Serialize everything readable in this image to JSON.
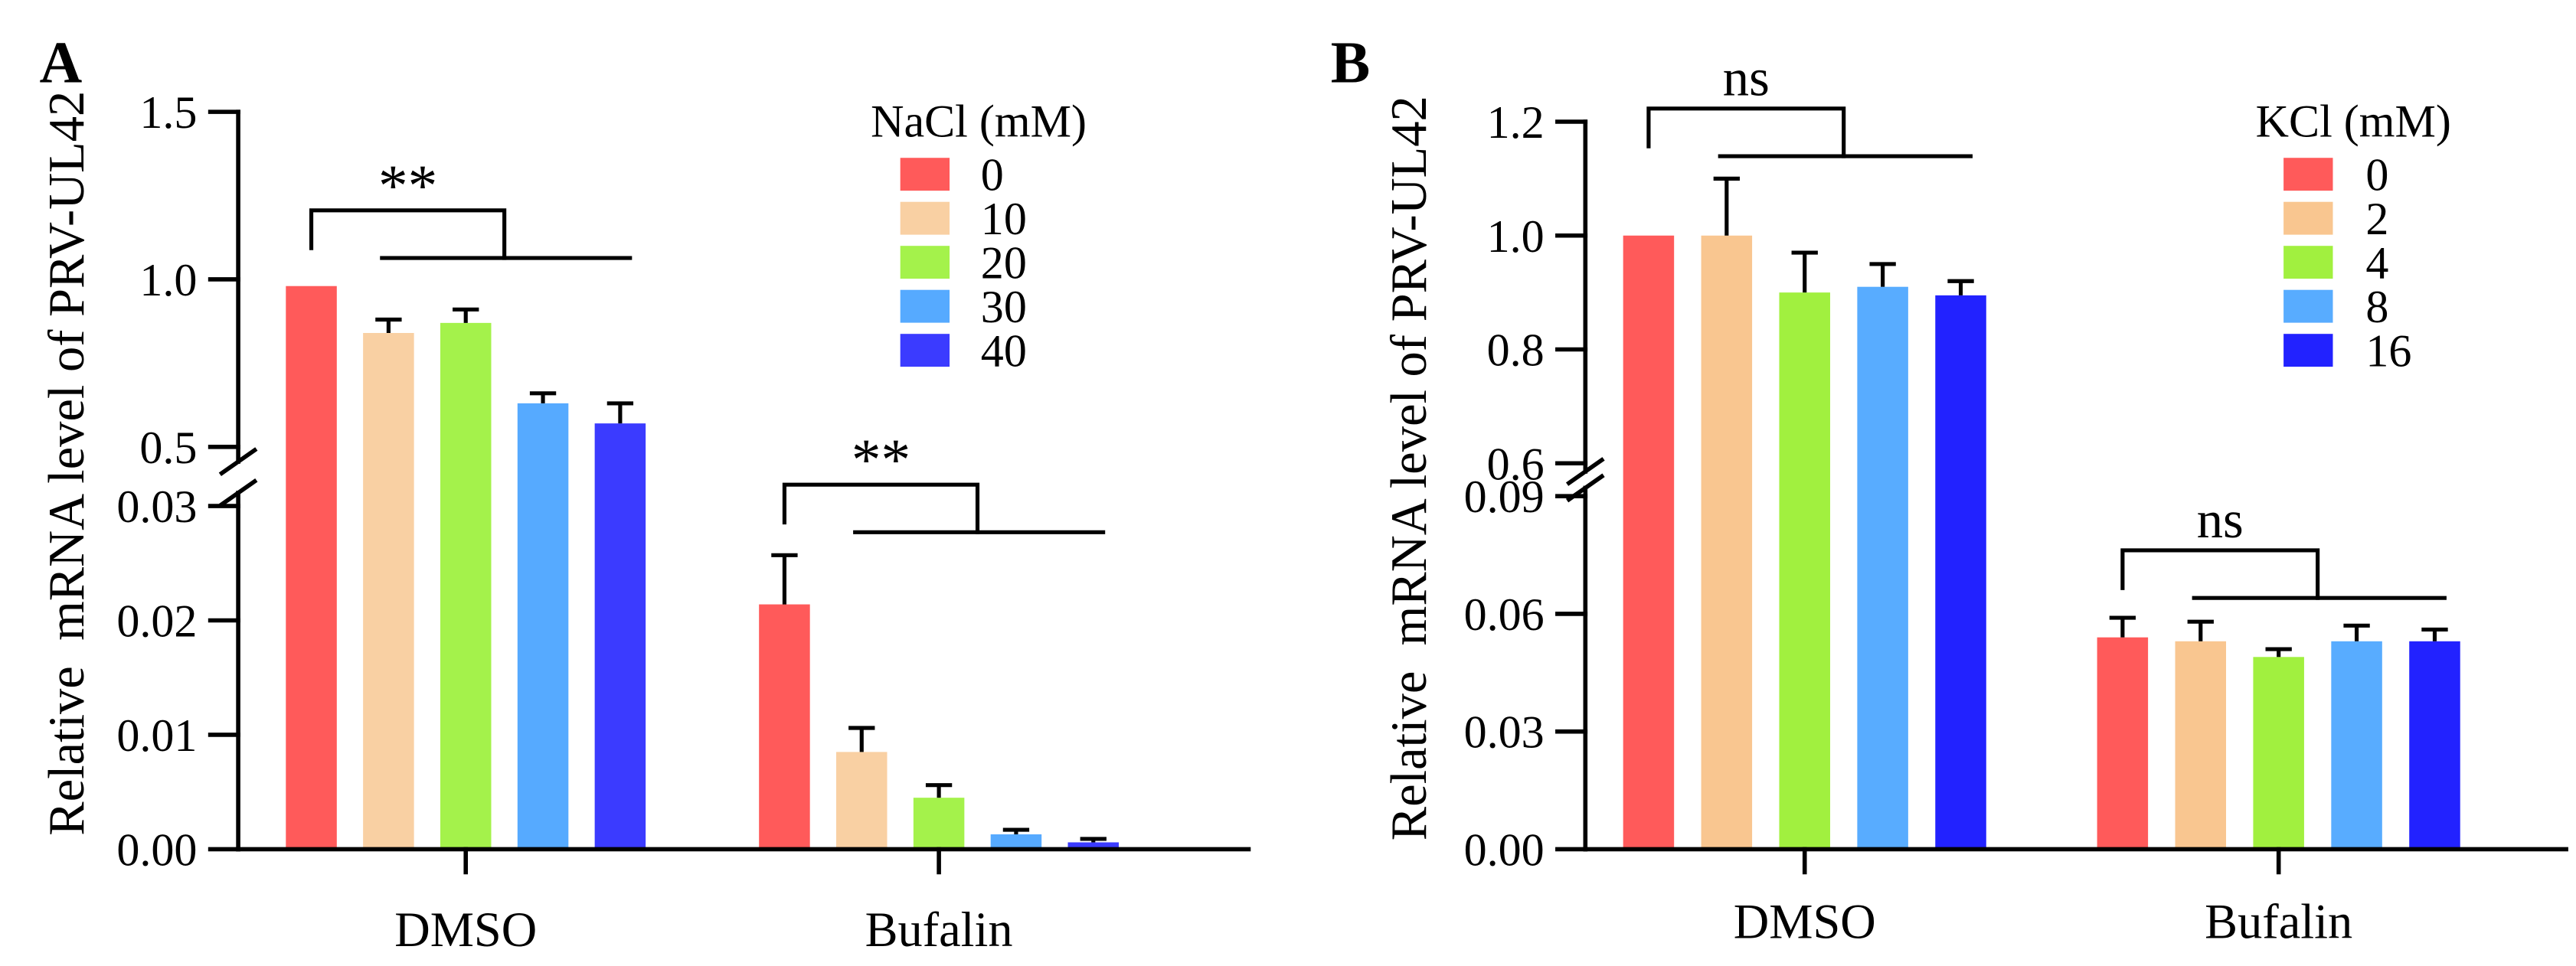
{
  "chart_data": [
    {
      "type": "bar",
      "panel_label": "A",
      "ylabel": "Relative  mRNA level of PRV-UL42",
      "categories": [
        "DMSO",
        "Bufalin"
      ],
      "legend": {
        "title": "NaCl (mM)",
        "position": "top-right"
      },
      "grid": false,
      "y_axis": {
        "broken": true,
        "upper_segment": {
          "range": [
            0.5,
            1.5
          ],
          "ticks": [
            0.5,
            1.0,
            1.5
          ],
          "tick_labels": [
            "0.5",
            "1.0",
            "1.5"
          ]
        },
        "lower_segment": {
          "range": [
            0,
            0.03
          ],
          "ticks": [
            0,
            0.01,
            0.02,
            0.03
          ],
          "tick_labels": [
            "0.00",
            "0.01",
            "0.02",
            "0.03"
          ]
        }
      },
      "series": [
        {
          "name": "0",
          "color": "#FF5A5A",
          "values": [
            0.98,
            0.0214
          ],
          "errors": [
            0,
            0.0043
          ]
        },
        {
          "name": "10",
          "color": "#F9D0A3",
          "values": [
            0.84,
            0.0085
          ],
          "errors": [
            0.04,
            0.0021
          ]
        },
        {
          "name": "20",
          "color": "#A4F24B",
          "values": [
            0.87,
            0.0045
          ],
          "errors": [
            0.04,
            0.0011
          ]
        },
        {
          "name": "30",
          "color": "#56AAFF",
          "values": [
            0.63,
            0.0013
          ],
          "errors": [
            0.03,
            0.0004
          ]
        },
        {
          "name": "40",
          "color": "#3B3BFF",
          "values": [
            0.57,
            0.0006
          ],
          "errors": [
            0.06,
            0.0003
          ]
        }
      ],
      "significance": [
        {
          "category_index": 0,
          "text": "**"
        },
        {
          "category_index": 1,
          "text": "**"
        }
      ]
    },
    {
      "type": "bar",
      "panel_label": "B",
      "ylabel": "Relative  mRNA level of PRV-UL42",
      "categories": [
        "DMSO",
        "Bufalin"
      ],
      "legend": {
        "title": "KCl (mM)",
        "position": "top-right"
      },
      "grid": false,
      "y_axis": {
        "broken": true,
        "upper_segment": {
          "range": [
            0.6,
            1.2
          ],
          "ticks": [
            0.6,
            0.8,
            1.0,
            1.2
          ],
          "tick_labels": [
            "0.6",
            "0.8",
            "1.0",
            "1.2"
          ]
        },
        "lower_segment": {
          "range": [
            0,
            0.09
          ],
          "ticks": [
            0,
            0.03,
            0.06,
            0.09
          ],
          "tick_labels": [
            "0.00",
            "0.03",
            "0.06",
            "0.09"
          ]
        }
      },
      "series": [
        {
          "name": "0",
          "color": "#FF5A5A",
          "values": [
            1.0,
            0.054
          ],
          "errors": [
            0,
            0.005
          ]
        },
        {
          "name": "2",
          "color": "#F9C690",
          "values": [
            1.0,
            0.053
          ],
          "errors": [
            0.1,
            0.005
          ]
        },
        {
          "name": "4",
          "color": "#A1F03F",
          "values": [
            0.9,
            0.049
          ],
          "errors": [
            0.07,
            0.002
          ]
        },
        {
          "name": "8",
          "color": "#58ACFF",
          "values": [
            0.91,
            0.053
          ],
          "errors": [
            0.04,
            0.004
          ]
        },
        {
          "name": "16",
          "color": "#2222FF",
          "values": [
            0.895,
            0.053
          ],
          "errors": [
            0.025,
            0.003
          ]
        }
      ],
      "significance": [
        {
          "category_index": 0,
          "text": "ns"
        },
        {
          "category_index": 1,
          "text": "ns"
        }
      ]
    }
  ]
}
